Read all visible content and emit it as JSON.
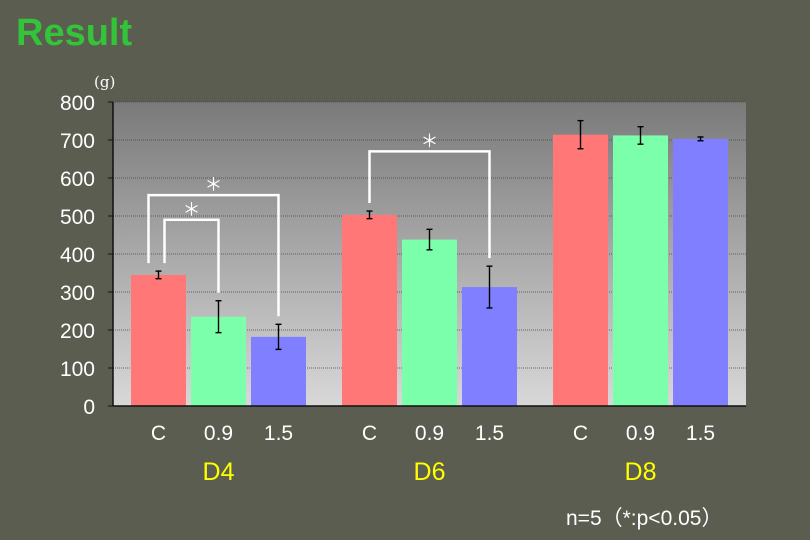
{
  "slide": {
    "title": "Result",
    "note": "n=5（*:p<0.05）"
  },
  "chart_data": {
    "type": "bar",
    "ylabel": "(g)",
    "ylim": [
      0,
      800
    ],
    "yticks": [
      0,
      100,
      200,
      300,
      400,
      500,
      600,
      700,
      800
    ],
    "grid": true,
    "series_colors": {
      "C": "#ff7777",
      "0.9": "#7cffaa",
      "1.5": "#7f7fff"
    },
    "groups": [
      {
        "name": "D4",
        "bars": [
          {
            "label": "C",
            "value": 345,
            "error": 10
          },
          {
            "label": "0.9",
            "value": 235,
            "error": 42
          },
          {
            "label": "1.5",
            "value": 182,
            "error": 33
          }
        ]
      },
      {
        "name": "D6",
        "bars": [
          {
            "label": "C",
            "value": 503,
            "error": 10
          },
          {
            "label": "0.9",
            "value": 438,
            "error": 27
          },
          {
            "label": "1.5",
            "value": 313,
            "error": 55
          }
        ]
      },
      {
        "name": "D8",
        "bars": [
          {
            "label": "C",
            "value": 714,
            "error": 37
          },
          {
            "label": "0.9",
            "value": 712,
            "error": 23
          },
          {
            "label": "1.5",
            "value": 703,
            "error": 5
          }
        ]
      }
    ],
    "significance": [
      {
        "group": 0,
        "from": 0,
        "to": 1,
        "label": "＊",
        "y": 490
      },
      {
        "group": 0,
        "from": 0,
        "to": 2,
        "label": "＊",
        "y": 555
      },
      {
        "group": 1,
        "from": 0,
        "to": 2,
        "label": "＊",
        "y": 670
      }
    ]
  }
}
